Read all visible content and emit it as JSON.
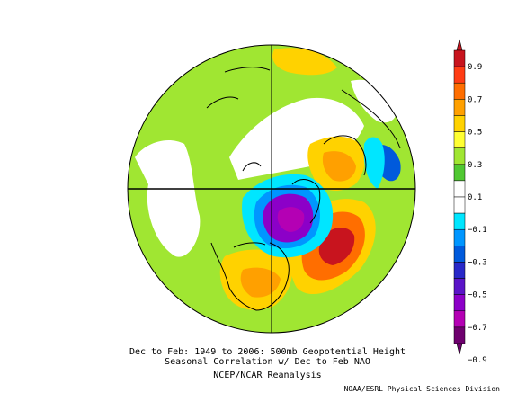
{
  "caption": {
    "line1": "Dec to Feb: 1949 to 2006: 500mb Geopotential Height",
    "line2": "Seasonal Correlation w/ Dec to Feb NAO",
    "line3": "NCEP/NCAR Reanalysis",
    "credit": "NOAA/ESRL Physical Sciences Division"
  },
  "colorbar": {
    "labels": [
      "0.9",
      "0.7",
      "0.5",
      "0.3",
      "0.1",
      "−0.1",
      "−0.3",
      "−0.5",
      "−0.7",
      "−0.9"
    ],
    "colors": [
      "#c8141e",
      "#ff3c14",
      "#ff6e00",
      "#ffa000",
      "#ffd200",
      "#ffff32",
      "#a0e632",
      "#50c832",
      "#ffffff",
      "#ffffff",
      "#00e6ff",
      "#0096ff",
      "#005adc",
      "#2828c8",
      "#5a14c8",
      "#8c00c8",
      "#b400b4",
      "#6e006e"
    ]
  }
}
